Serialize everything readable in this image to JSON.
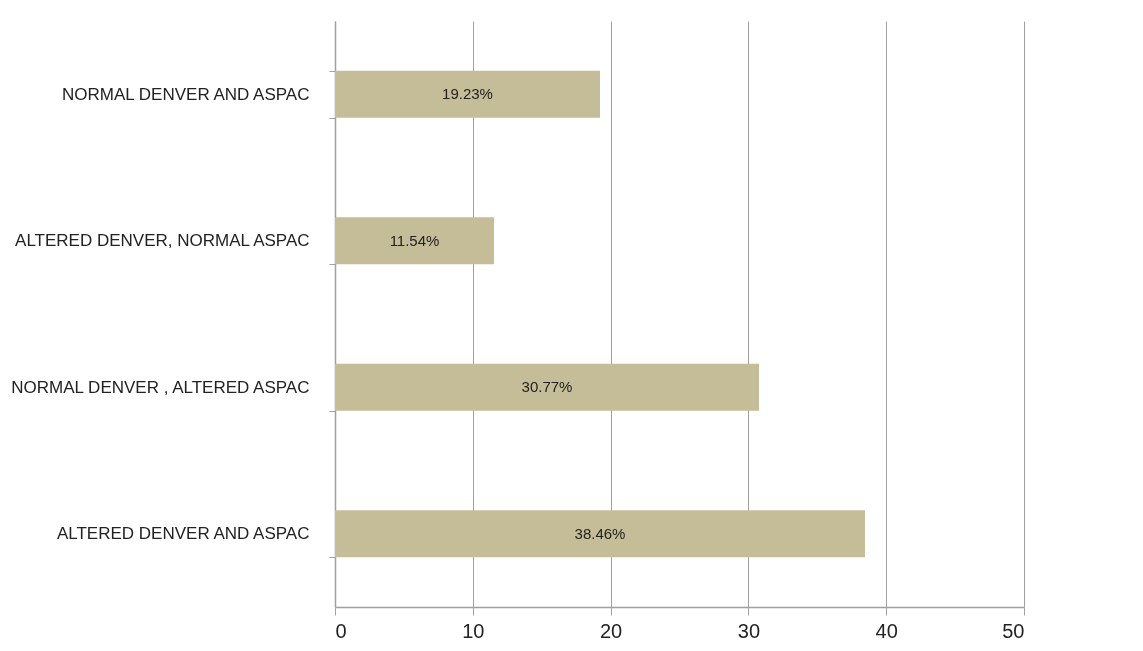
{
  "chart_data": {
    "type": "bar",
    "orientation": "horizontal",
    "categories": [
      "NORMAL DENVER AND ASPAC",
      "ALTERED DENVER, NORMAL ASPAC",
      "NORMAL DENVER , ALTERED ASPAC",
      "ALTERED DENVER AND ASPAC"
    ],
    "values": [
      19.23,
      11.54,
      30.77,
      38.46
    ],
    "value_labels": [
      "19.23%",
      "11.54%",
      "30.77%",
      "38.46%"
    ],
    "color": "#c4bd97",
    "xlim": [
      0,
      50
    ],
    "xticks": [
      0,
      10,
      20,
      30,
      40,
      50
    ],
    "grid": "x"
  }
}
